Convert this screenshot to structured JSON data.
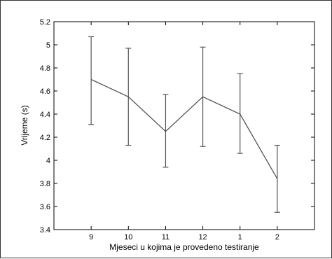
{
  "chart_data": {
    "type": "line",
    "title": "",
    "xlabel": "Mjeseci u kojima je provedeno testiranje",
    "ylabel": "Vrijeme (s)",
    "categories": [
      "9",
      "10",
      "11",
      "12",
      "1",
      "2"
    ],
    "values": [
      4.7,
      4.55,
      4.25,
      4.55,
      4.4,
      3.84
    ],
    "error_low": [
      4.31,
      4.13,
      3.94,
      4.12,
      4.06,
      3.55
    ],
    "error_high": [
      5.07,
      4.97,
      4.57,
      4.98,
      4.75,
      4.13
    ],
    "ylim": [
      3.4,
      5.2
    ],
    "yticks": [
      "3.4",
      "3.6",
      "3.8",
      "4",
      "4.2",
      "4.4",
      "4.6",
      "4.8",
      "5",
      "5.2"
    ],
    "grid": false,
    "colors": {
      "line": "#555555",
      "axis": "#000000"
    }
  }
}
